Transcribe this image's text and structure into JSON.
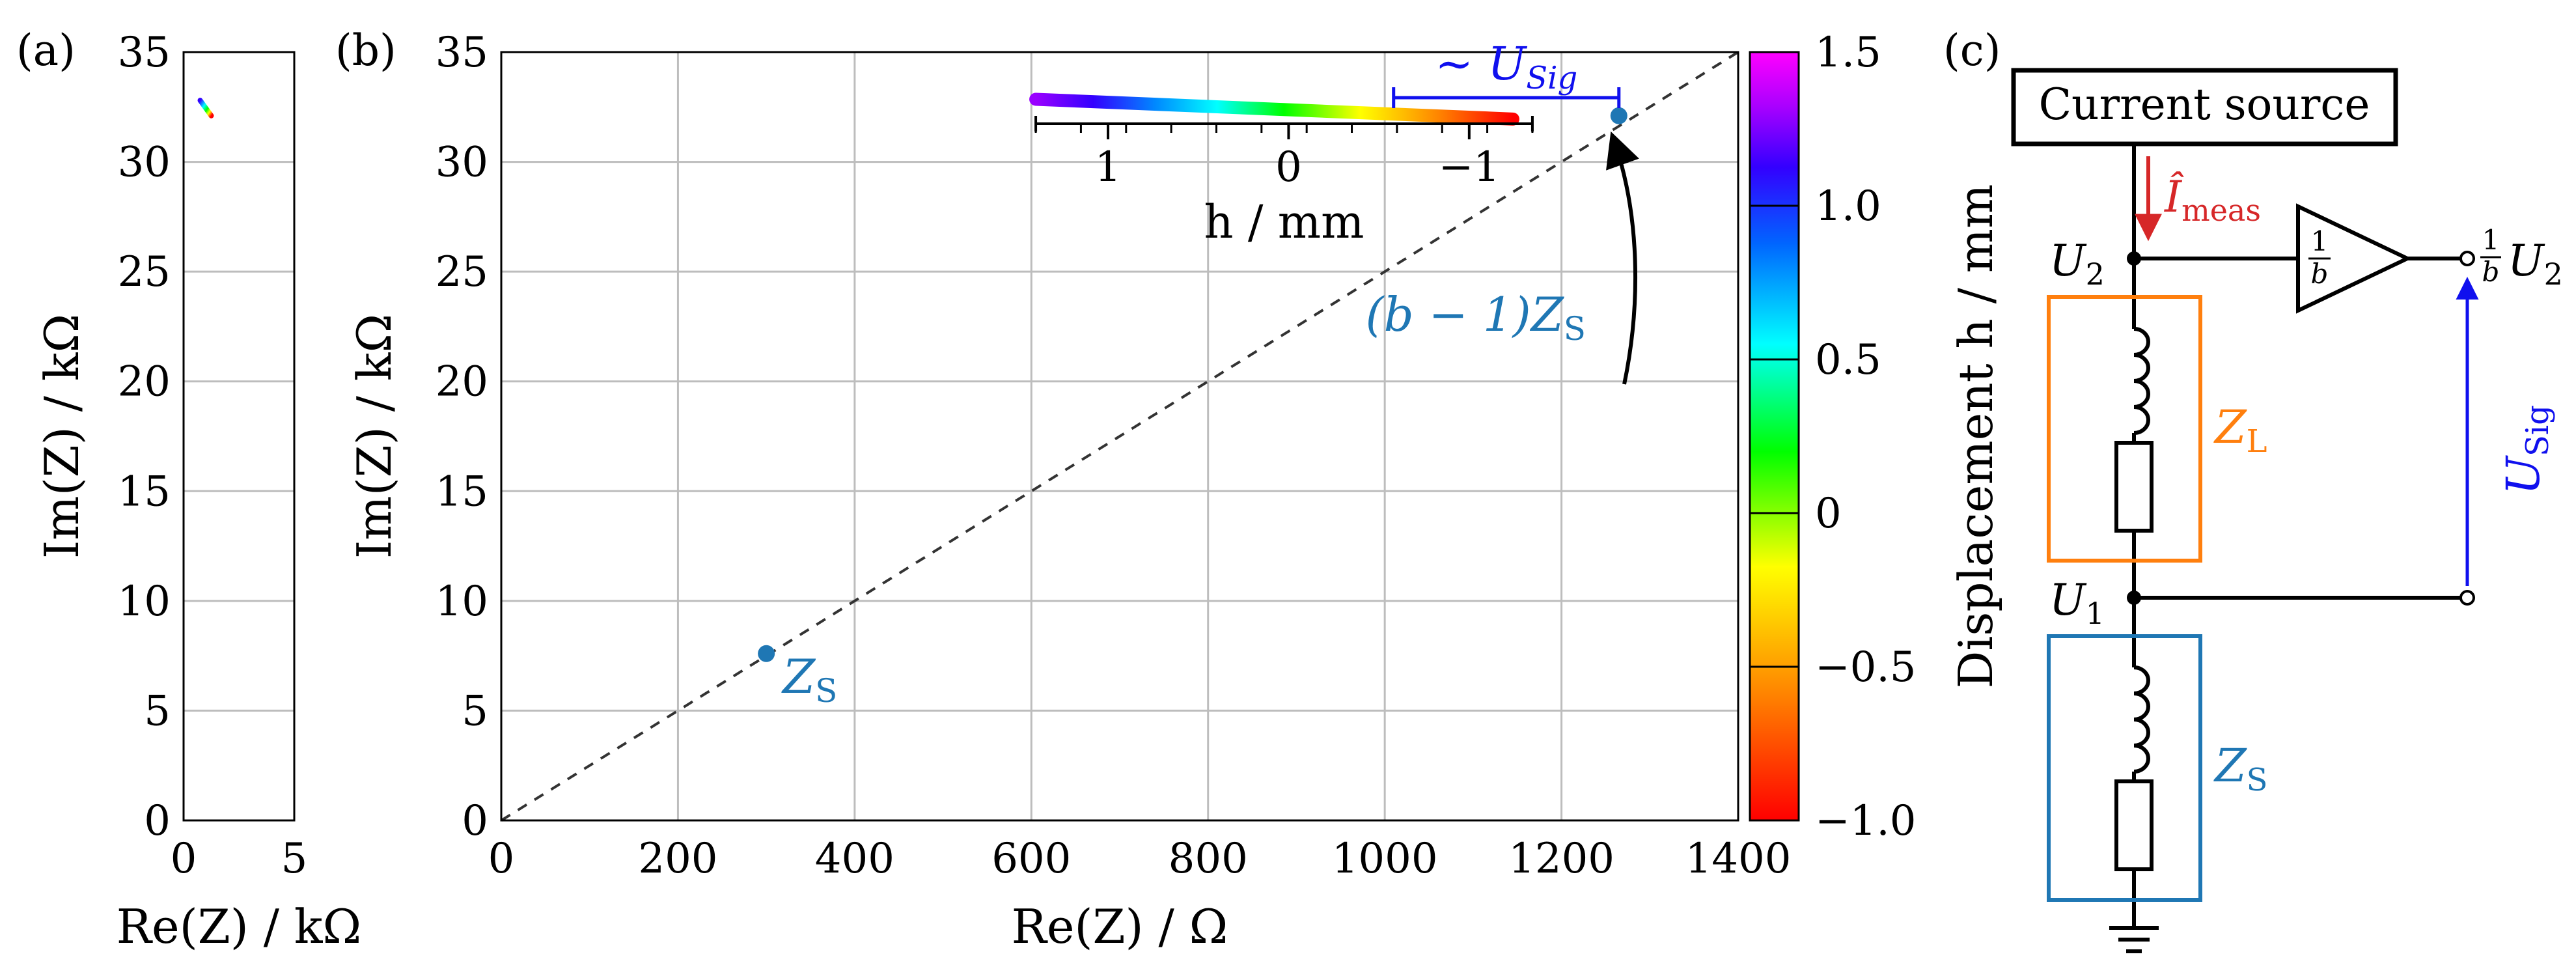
{
  "figure": {
    "panel_a": "(a)",
    "panel_b": "(b)",
    "panel_c": "(c)"
  },
  "chart_data": [
    {
      "id": "a",
      "type": "line",
      "xlabel": "Re(Z) / kΩ",
      "ylabel": "Im(Z) / kΩ",
      "xlim": [
        0,
        5
      ],
      "ylim": [
        0,
        35
      ],
      "xticks": [
        0,
        5
      ],
      "yticks": [
        0,
        5,
        10,
        15,
        20,
        25,
        30,
        35
      ],
      "grid": true,
      "series": [
        {
          "name": "trajectory",
          "x": [
            0.75,
            1.25
          ],
          "y": [
            32.8,
            32.1
          ],
          "colormap": "displacement"
        }
      ]
    },
    {
      "id": "b",
      "type": "scatter",
      "xlabel": "Re(Z) / Ω",
      "ylabel": "Im(Z) / kΩ",
      "xlim": [
        0,
        1400
      ],
      "ylim": [
        0,
        35
      ],
      "xticks": [
        0,
        200,
        400,
        600,
        800,
        1000,
        1200,
        1400
      ],
      "yticks": [
        0,
        5,
        10,
        15,
        20,
        25,
        30,
        35
      ],
      "grid": true,
      "reference_line": {
        "x": [
          0,
          1400
        ],
        "y": [
          0,
          35
        ],
        "style": "dashed"
      },
      "points": [
        {
          "name": "Z_S",
          "x": 300,
          "y": 7.6,
          "label": "Z",
          "sub": "S",
          "color": "#1f77b4"
        },
        {
          "name": "(b-1)Z_S",
          "x": 1265,
          "y": 32.1,
          "label": "(b − 1)Z",
          "sub": "S",
          "color": "#1f77b4"
        }
      ],
      "trajectory": {
        "x": [
          605,
          1145
        ],
        "y": [
          32.85,
          31.95
        ],
        "h_range": [
          1.4,
          -0.9
        ]
      },
      "inset_axis": {
        "label": "h / mm",
        "tick_values": [
          1,
          0,
          -1
        ],
        "tick_labels": [
          "1",
          "0",
          "−1"
        ],
        "h_range": [
          1.4,
          -1.35
        ]
      },
      "bracket": {
        "label": "∼ U",
        "sub": "Sig",
        "x": [
          1010,
          1265
        ],
        "color": "#1010ee"
      },
      "colorbar": {
        "label": "Displacement h / mm",
        "range": [
          -1.0,
          1.5
        ],
        "ticks": [
          -1.0,
          -0.5,
          0,
          0.5,
          1.0,
          1.5
        ],
        "tick_labels": [
          "−1.0",
          "−0.5",
          "0",
          "0.5",
          "1.0",
          "1.5"
        ]
      }
    }
  ],
  "circuit": {
    "source_label": "Current source",
    "current_label": "Î",
    "current_sub": "meas",
    "u2_label": "U",
    "u2_sub": "2",
    "u1_label": "U",
    "u1_sub": "1",
    "amp_gain_num": "1",
    "amp_gain_den": "b",
    "output_num": "1",
    "output_den": "b",
    "output_label": "U",
    "output_sub": "2",
    "zl_label": "Z",
    "zl_sub": "L",
    "zs_label": "Z",
    "zs_sub": "S",
    "usig_label": "U",
    "usig_sub": "Sig",
    "colors": {
      "current": "#d62728",
      "zl": "#ff7f0e",
      "zs": "#1f77b4",
      "usig": "#1010ee"
    }
  }
}
